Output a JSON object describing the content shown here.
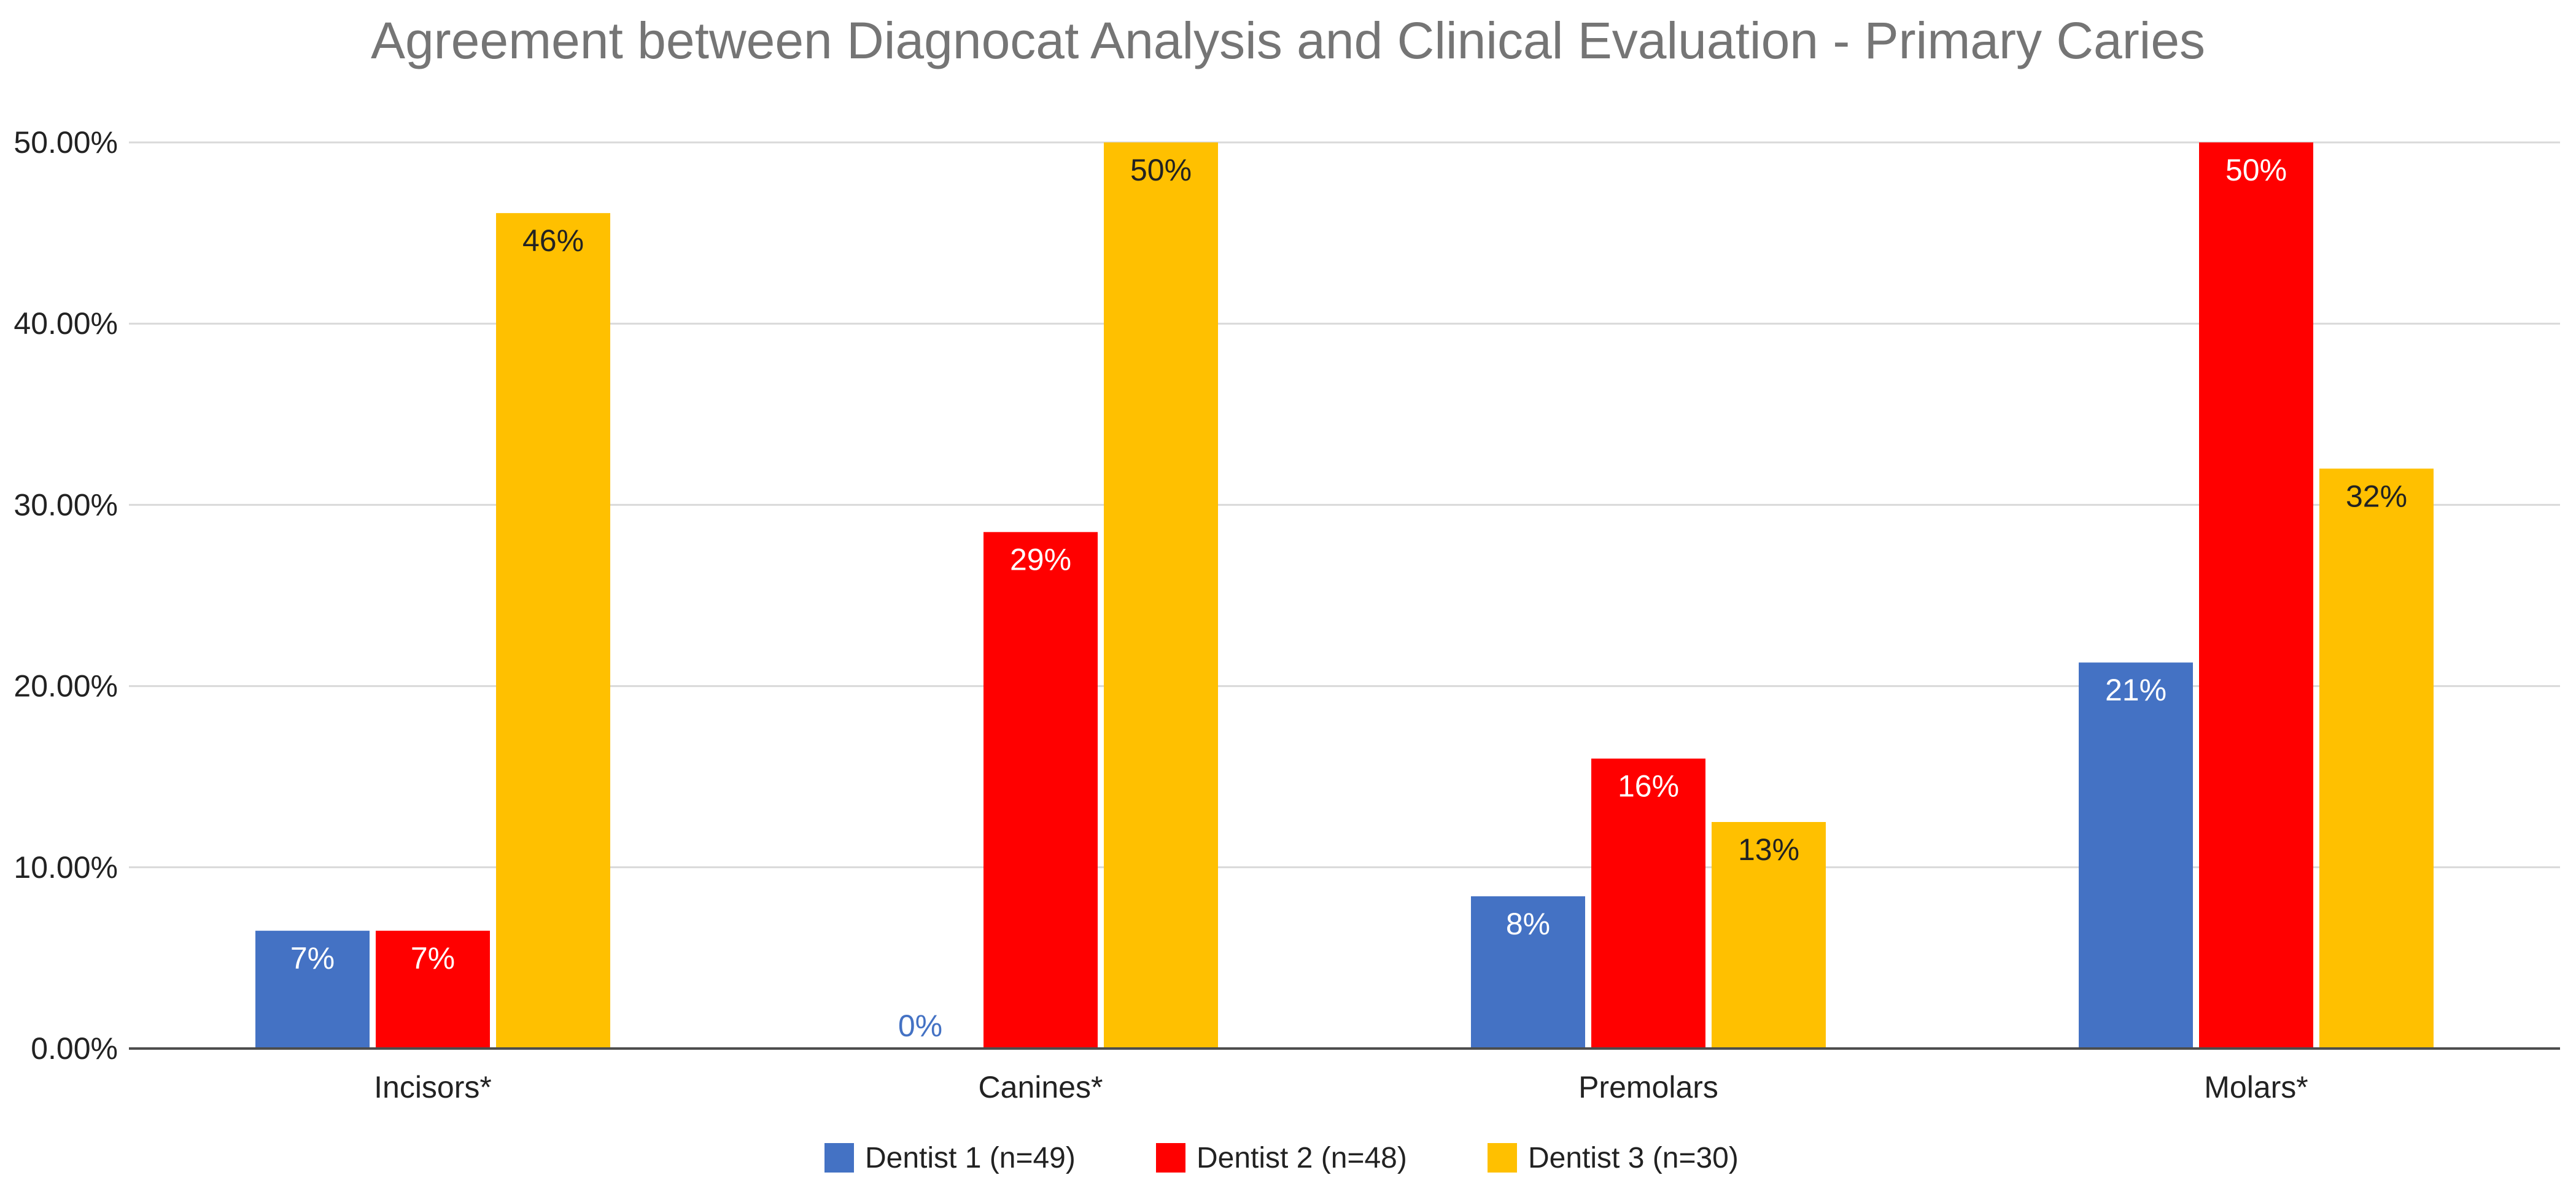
{
  "chart_data": {
    "type": "bar",
    "title": "Agreement between Diagnocat Analysis and Clinical Evaluation - Primary Caries",
    "xlabel": "",
    "ylabel": "",
    "ylim": [
      0,
      0.5
    ],
    "yticks": [
      0,
      0.1,
      0.2,
      0.3,
      0.4,
      0.5
    ],
    "ytick_labels": [
      "0.00%",
      "10.00%",
      "20.00%",
      "30.00%",
      "40.00%",
      "50.00%"
    ],
    "grid": true,
    "legend_position": "bottom",
    "categories": [
      "Incisors*",
      "Canines*",
      "Premolars",
      "Molars*"
    ],
    "series": [
      {
        "name": "Dentist 1 (n=49)",
        "color": "#4472C4",
        "values": [
          0.065,
          0.0,
          0.084,
          0.213
        ],
        "labels": [
          "7%",
          "0%",
          "8%",
          "21%"
        ]
      },
      {
        "name": "Dentist 2 (n=48)",
        "color": "#FF0000",
        "values": [
          0.065,
          0.285,
          0.16,
          0.5
        ],
        "labels": [
          "7%",
          "29%",
          "16%",
          "50%"
        ]
      },
      {
        "name": "Dentist 3 (n=30)",
        "color": "#FFC000",
        "values": [
          0.461,
          0.5,
          0.125,
          0.32
        ],
        "labels": [
          "46%",
          "50%",
          "13%",
          "32%"
        ]
      }
    ]
  }
}
